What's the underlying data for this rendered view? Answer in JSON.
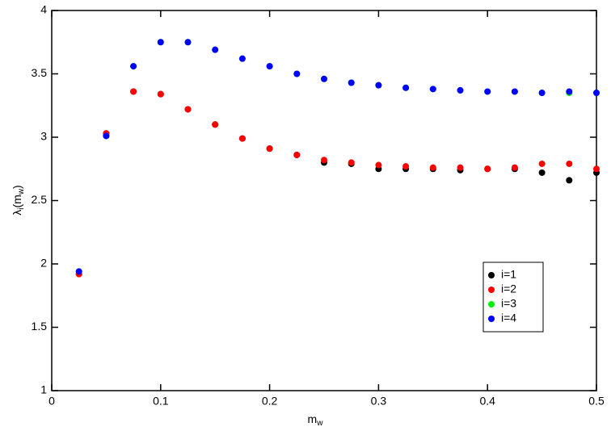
{
  "chart_data": {
    "type": "scatter",
    "xlabel": [
      "m",
      "w"
    ],
    "ylabel": [
      "λ",
      "i",
      "(m",
      "w",
      ")"
    ],
    "xlim": [
      0,
      0.5
    ],
    "ylim": [
      1,
      4
    ],
    "xticks": [
      0,
      0.1,
      0.2,
      0.3,
      0.4,
      0.5
    ],
    "yticks": [
      1,
      1.5,
      2,
      2.5,
      3,
      3.5,
      4
    ],
    "grid": false,
    "legend": "lower right",
    "x": [
      0.025,
      0.05,
      0.075,
      0.1,
      0.125,
      0.15,
      0.175,
      0.2,
      0.225,
      0.25,
      0.275,
      0.3,
      0.325,
      0.35,
      0.375,
      0.4,
      0.425,
      0.45,
      0.475,
      0.5
    ],
    "series": [
      {
        "name": "i=1",
        "color": "#000000",
        "values": [
          1.92,
          3.03,
          3.36,
          3.34,
          3.22,
          3.1,
          2.99,
          2.91,
          2.86,
          2.8,
          2.79,
          2.75,
          2.75,
          2.75,
          2.74,
          2.75,
          2.75,
          2.72,
          2.66,
          2.72
        ]
      },
      {
        "name": "i=2",
        "color": "#ff0000",
        "values": [
          1.92,
          3.03,
          3.36,
          3.34,
          3.22,
          3.1,
          2.99,
          2.91,
          2.86,
          2.82,
          2.8,
          2.78,
          2.77,
          2.76,
          2.76,
          2.75,
          2.76,
          2.79,
          2.79,
          2.75
        ]
      },
      {
        "name": "i=3",
        "color": "#00ee00",
        "values": [
          1.94,
          3.01,
          3.56,
          3.75,
          3.75,
          3.69,
          3.62,
          3.56,
          3.5,
          3.46,
          3.43,
          3.41,
          3.39,
          3.38,
          3.37,
          3.36,
          3.36,
          3.35,
          3.35,
          3.35
        ]
      },
      {
        "name": "i=4",
        "color": "#0000ff",
        "values": [
          1.94,
          3.01,
          3.56,
          3.75,
          3.75,
          3.69,
          3.62,
          3.56,
          3.5,
          3.46,
          3.43,
          3.41,
          3.39,
          3.38,
          3.37,
          3.36,
          3.36,
          3.35,
          3.36,
          3.35
        ]
      }
    ]
  }
}
